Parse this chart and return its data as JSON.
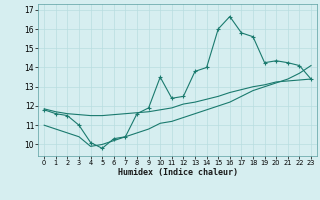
{
  "xlabel": "Humidex (Indice chaleur)",
  "bg_color": "#d6eef0",
  "line_color": "#1a7a6e",
  "grid_color": "#b8dde0",
  "x_ticks": [
    0,
    1,
    2,
    3,
    4,
    5,
    6,
    7,
    8,
    9,
    10,
    11,
    12,
    13,
    14,
    15,
    16,
    17,
    18,
    19,
    20,
    21,
    22,
    23
  ],
  "y_ticks": [
    10,
    11,
    12,
    13,
    14,
    15,
    16,
    17
  ],
  "ylim": [
    9.4,
    17.3
  ],
  "xlim": [
    -0.5,
    23.5
  ],
  "line1_x": [
    0,
    1,
    2,
    3,
    4,
    5,
    6,
    7,
    8,
    9,
    10,
    11,
    12,
    13,
    14,
    15,
    16,
    17,
    18,
    19,
    20,
    21,
    22,
    23
  ],
  "line1_y": [
    11.8,
    11.6,
    11.5,
    11.0,
    10.1,
    9.8,
    10.3,
    10.4,
    11.6,
    11.9,
    13.5,
    12.4,
    12.5,
    13.8,
    14.0,
    16.0,
    16.65,
    15.8,
    15.6,
    14.25,
    14.35,
    14.25,
    14.1,
    13.4
  ],
  "line2_x": [
    0,
    1,
    2,
    3,
    4,
    5,
    6,
    7,
    8,
    9,
    10,
    11,
    12,
    13,
    14,
    15,
    16,
    17,
    18,
    19,
    20,
    21,
    22,
    23
  ],
  "line2_y": [
    11.85,
    11.7,
    11.6,
    11.55,
    11.5,
    11.5,
    11.55,
    11.6,
    11.65,
    11.7,
    11.8,
    11.9,
    12.1,
    12.2,
    12.35,
    12.5,
    12.7,
    12.85,
    13.0,
    13.1,
    13.25,
    13.3,
    13.35,
    13.4
  ],
  "line3_x": [
    0,
    1,
    2,
    3,
    4,
    5,
    6,
    7,
    8,
    9,
    10,
    11,
    12,
    13,
    14,
    15,
    16,
    17,
    18,
    19,
    20,
    21,
    22,
    23
  ],
  "line3_y": [
    11.0,
    10.8,
    10.6,
    10.4,
    9.9,
    10.0,
    10.2,
    10.4,
    10.6,
    10.8,
    11.1,
    11.2,
    11.4,
    11.6,
    11.8,
    12.0,
    12.2,
    12.5,
    12.8,
    13.0,
    13.2,
    13.4,
    13.7,
    14.1
  ]
}
